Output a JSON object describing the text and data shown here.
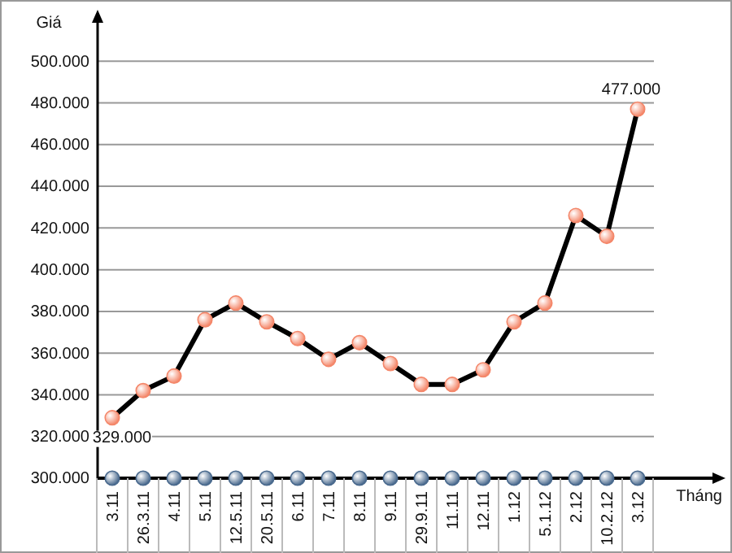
{
  "chart_data": {
    "type": "line",
    "xlabel": "Tháng",
    "ylabel": "Giá",
    "categories": [
      "3.11",
      "26.3.11",
      "4.11",
      "5.11",
      "12.5.11",
      "20.5.11",
      "6.11",
      "7.11",
      "8.11",
      "9.11",
      "29.9.11",
      "11.11",
      "12.11",
      "1.12",
      "5.1.12",
      "2.12",
      "10.2.12",
      "3.12"
    ],
    "series": [
      {
        "color": "#000000",
        "values": [
          329,
          342,
          349,
          376,
          384,
          375,
          367,
          357,
          365,
          355,
          345,
          345,
          352,
          375,
          384,
          426,
          416,
          477
        ],
        "value_labels": [
          "329.000",
          null,
          null,
          null,
          null,
          null,
          null,
          null,
          null,
          null,
          null,
          null,
          null,
          null,
          null,
          null,
          null,
          "477.000"
        ]
      },
      {
        "type": "scatter",
        "color": "#4a6a8e",
        "values": [
          300,
          300,
          300,
          300,
          300,
          300,
          300,
          300,
          300,
          300,
          300,
          300,
          300,
          300,
          300,
          300,
          300,
          300
        ]
      }
    ],
    "ylim": [
      300,
      520
    ],
    "yticks": [
      {
        "value": 300,
        "label": "300.000"
      },
      {
        "value": 320,
        "label": "320.000"
      },
      {
        "value": 340,
        "label": "340.000"
      },
      {
        "value": 360,
        "label": "360.000"
      },
      {
        "value": 380,
        "label": "380.000"
      },
      {
        "value": 400,
        "label": "400.000"
      },
      {
        "value": 420,
        "label": "420.000"
      },
      {
        "value": 440,
        "label": "440.000"
      },
      {
        "value": 460,
        "label": "460.000"
      },
      {
        "value": 480,
        "label": "480.000"
      },
      {
        "value": 500,
        "label": "500.000"
      }
    ],
    "grid": "y",
    "marker": "circle",
    "line_style": "solid"
  }
}
